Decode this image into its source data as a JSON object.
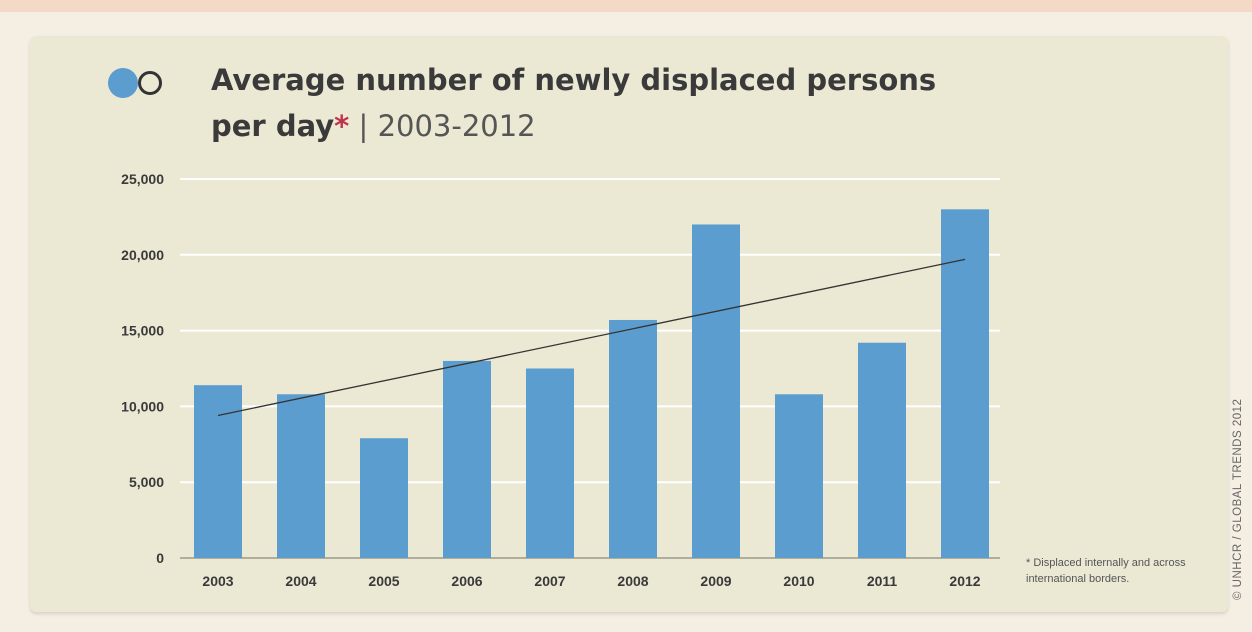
{
  "title": {
    "line1": "Average number of newly displaced persons",
    "line2_bold": "per day",
    "line2_star": "*",
    "line2_sep": " | ",
    "line2_years": "2003-2012"
  },
  "footnote": "* Displaced internally and across international borders.",
  "credit": "© UNHCR / GLOBAL TRENDS 2012",
  "colors": {
    "bar": "#5b9dce",
    "trendline": "#333333",
    "panel": "#ebe8d4",
    "accent_star": "#c0344a",
    "icon_filled": "#5b9dce",
    "icon_ring": "#333333"
  },
  "icons": [
    "filled-circle-icon",
    "ring-circle-icon"
  ],
  "chart_data": {
    "type": "bar",
    "title": "Average number of newly displaced persons per day* | 2003-2012",
    "categories": [
      "2003",
      "2004",
      "2005",
      "2006",
      "2007",
      "2008",
      "2009",
      "2010",
      "2011",
      "2012"
    ],
    "values": [
      11400,
      10800,
      7900,
      13000,
      12500,
      15700,
      22000,
      10800,
      14200,
      23000
    ],
    "trendline": {
      "start": 9400,
      "end": 19700
    },
    "ylim": [
      0,
      25000
    ],
    "yticks": [
      0,
      5000,
      10000,
      15000,
      20000,
      25000
    ],
    "ytick_labels": [
      "0",
      "5,000",
      "10,000",
      "15,000",
      "20,000",
      "25,000"
    ],
    "grid": true,
    "xlabel": "",
    "ylabel": ""
  }
}
